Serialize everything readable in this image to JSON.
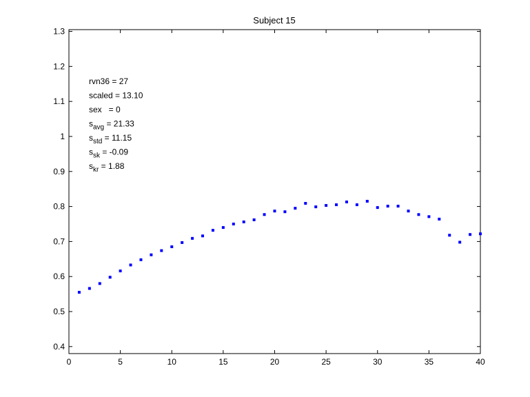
{
  "chart_data": {
    "type": "scatter",
    "title": "Subject 15",
    "xlabel": "",
    "ylabel": "",
    "xlim": [
      0,
      40
    ],
    "ylim": [
      0.38,
      1.305
    ],
    "xticks": [
      0,
      5,
      10,
      15,
      20,
      25,
      30,
      35,
      40
    ],
    "yticks": [
      0.4,
      0.5,
      0.6,
      0.7,
      0.8,
      0.9,
      1,
      1.1,
      1.2,
      1.3
    ],
    "grid": false,
    "marker_color": "#0000ff",
    "series": [
      {
        "x": [
          1,
          2,
          3,
          4,
          5,
          6,
          7,
          8,
          9,
          10,
          11,
          12,
          13,
          14,
          15,
          16,
          17,
          18,
          19,
          20,
          21,
          22,
          23,
          24,
          25,
          26,
          27,
          28,
          29,
          30,
          31,
          32,
          33,
          34,
          35,
          36,
          37,
          38,
          39,
          40
        ],
        "values": [
          0.555,
          0.566,
          0.58,
          0.598,
          0.616,
          0.633,
          0.648,
          0.662,
          0.674,
          0.685,
          0.697,
          0.709,
          0.716,
          0.732,
          0.74,
          0.75,
          0.756,
          0.762,
          0.777,
          0.787,
          0.785,
          0.795,
          0.809,
          0.799,
          0.803,
          0.805,
          0.813,
          0.805,
          0.815,
          0.797,
          0.801,
          0.801,
          0.787,
          0.777,
          0.771,
          0.764,
          0.718,
          0.698,
          0.72,
          0.722
        ]
      }
    ],
    "annotations": [
      {
        "base": "rvn36 = 27",
        "sub": "",
        "rest": ""
      },
      {
        "base": "scaled = 13.10",
        "sub": "",
        "rest": ""
      },
      {
        "base": "sex   = 0",
        "sub": "",
        "rest": ""
      },
      {
        "base": "s",
        "sub": "avg",
        "rest": " = 21.33"
      },
      {
        "base": "s",
        "sub": "std",
        "rest": " = 11.15"
      },
      {
        "base": "s",
        "sub": "sk",
        "rest": " = -0.09"
      },
      {
        "base": "s",
        "sub": "kr",
        "rest": " = 1.88"
      }
    ]
  }
}
